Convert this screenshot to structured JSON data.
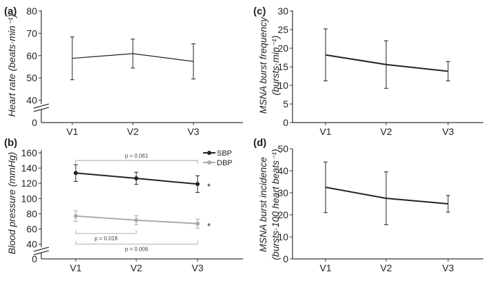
{
  "chart_data": [
    {
      "panel": "(a)",
      "type": "line",
      "categories": [
        "V1",
        "V2",
        "V3"
      ],
      "series": [
        {
          "name": "Heart rate",
          "values": [
            58.8,
            60.9,
            57.4
          ],
          "error": [
            9.6,
            6.5,
            7.9
          ],
          "color": "#222222"
        }
      ],
      "ylabel": "Heart rate (beats·min⁻¹)",
      "ylim": [
        35,
        80
      ],
      "yticks": [
        40,
        50,
        60,
        70,
        80
      ],
      "axis_break": true,
      "zero_label": "0"
    },
    {
      "panel": "(b)",
      "type": "line",
      "categories": [
        "V1",
        "V2",
        "V3"
      ],
      "series": [
        {
          "name": "SBP",
          "values": [
            133.5,
            126.5,
            119
          ],
          "error": [
            11,
            8,
            11
          ],
          "color": "#222222",
          "sig": "*"
        },
        {
          "name": "DBP",
          "values": [
            77,
            71.5,
            67
          ],
          "error": [
            7,
            6,
            6
          ],
          "color": "#aaaaaa",
          "sig": "*"
        }
      ],
      "ylabel": "Blood pressure (mmHg)",
      "ylim": [
        35,
        160
      ],
      "yticks": [
        40,
        60,
        80,
        100,
        120,
        140,
        160
      ],
      "axis_break": true,
      "zero_label": "0",
      "legend_position": "top-right",
      "brackets": [
        {
          "from": 0,
          "to": 2,
          "level": 150,
          "label": "p = 0.061",
          "side": "above"
        },
        {
          "from": 0,
          "to": 1,
          "level": 54,
          "label": "p = 0.018",
          "side": "below"
        },
        {
          "from": 0,
          "to": 2,
          "level": 40,
          "label": "p = 0.006",
          "side": "below"
        }
      ]
    },
    {
      "panel": "(c)",
      "type": "line",
      "categories": [
        "V1",
        "V2",
        "V3"
      ],
      "series": [
        {
          "name": "MSNA burst frequency",
          "values": [
            18.2,
            15.6,
            13.8
          ],
          "error": [
            7,
            6.4,
            2.6
          ],
          "color": "#222222"
        }
      ],
      "ylabel_line1": "MSNA burst frequency",
      "ylabel_line2": "(bursts·min⁻¹)",
      "ylim": [
        0,
        30
      ],
      "yticks": [
        0,
        5,
        10,
        15,
        20,
        25,
        30
      ],
      "axis_break": false
    },
    {
      "panel": "(d)",
      "type": "line",
      "categories": [
        "V1",
        "V2",
        "V3"
      ],
      "series": [
        {
          "name": "MSNA burst incidence",
          "values": [
            32.5,
            27.5,
            25
          ],
          "error": [
            11.5,
            12,
            3.8
          ],
          "color": "#222222"
        }
      ],
      "ylabel_line1": "MSNA burst incidence",
      "ylabel_line2": "(bursts·100 heart beats⁻¹)",
      "ylim": [
        0,
        50
      ],
      "yticks": [
        0,
        10,
        20,
        30,
        40,
        50
      ],
      "axis_break": false
    }
  ]
}
